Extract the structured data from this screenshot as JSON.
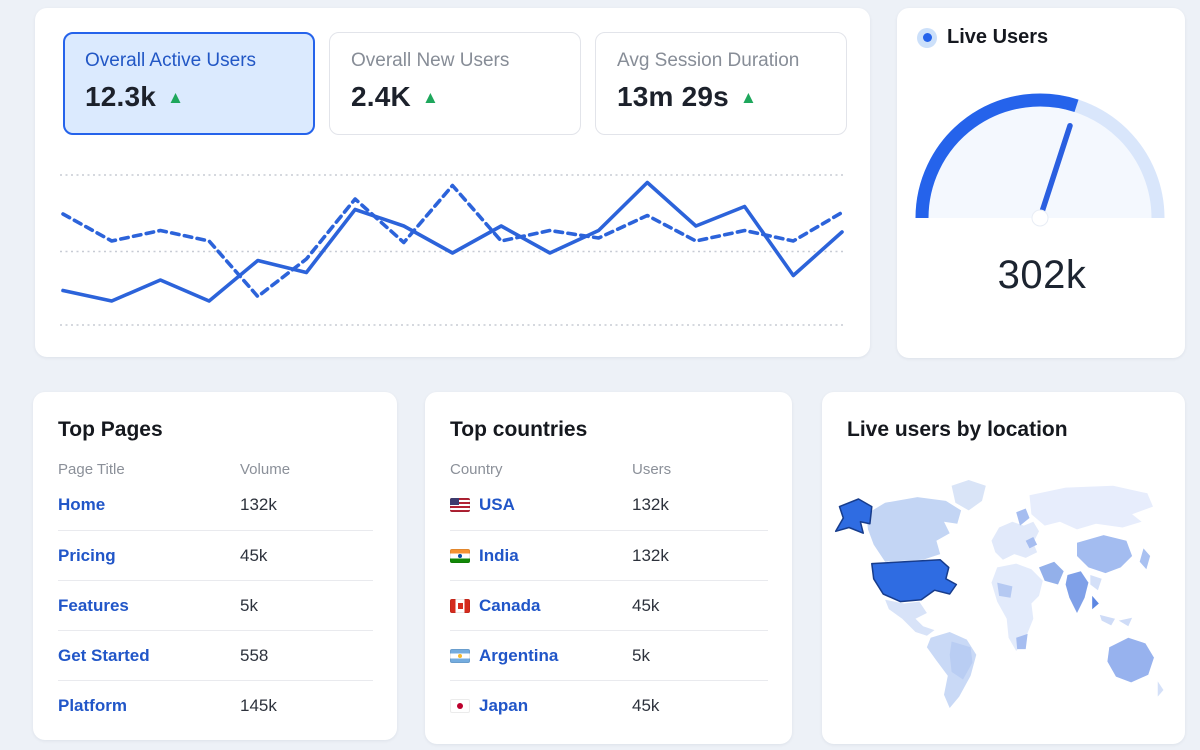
{
  "page": {
    "background": "#edf1f7",
    "accent": "#2563eb"
  },
  "stats": {
    "trend_glyph": "▲",
    "trend_color": "#1ea75c",
    "cards": [
      {
        "label": "Overall Active Users",
        "value": "12.3k",
        "trend": "up",
        "selected": true
      },
      {
        "label": "Overall New Users",
        "value": "2.4K",
        "trend": "up",
        "selected": false
      },
      {
        "label": "Avg Session Duration",
        "value": "13m 29s",
        "trend": "up",
        "selected": false
      }
    ]
  },
  "chart_data": {
    "type": "line",
    "x_count": 17,
    "ylim": [
      0,
      100
    ],
    "gridlines": [
      0,
      49,
      100
    ],
    "grid_color": "#c7cbd4",
    "axes": "hidden",
    "legend_position": "none",
    "series": [
      {
        "name": "active-users-current",
        "style": "solid",
        "color": "#2c63da",
        "values": [
          23,
          16,
          30,
          16,
          43,
          35,
          77,
          66,
          48,
          66,
          48,
          63,
          95,
          66,
          79,
          33,
          62
        ]
      },
      {
        "name": "active-users-previous",
        "style": "dashed",
        "color": "#2c63da",
        "values": [
          74,
          56,
          63,
          56,
          19,
          44,
          84,
          55,
          93,
          56,
          63,
          58,
          73,
          56,
          63,
          56,
          75
        ]
      }
    ]
  },
  "gauge": {
    "legend_label": "Live Users",
    "value": "302k",
    "percent": 60,
    "arc_color": "#2563eb",
    "track_color": "#d9e6fb",
    "needle_color": "#2a5fe0"
  },
  "top_pages": {
    "title": "Top Pages",
    "columns": [
      "Page Title",
      "Volume"
    ],
    "rows": [
      {
        "label": "Home",
        "value": "132k"
      },
      {
        "label": "Pricing",
        "value": "45k"
      },
      {
        "label": "Features",
        "value": "5k"
      },
      {
        "label": "Get Started",
        "value": "558"
      },
      {
        "label": "Platform",
        "value": "145k"
      }
    ]
  },
  "top_countries": {
    "title": "Top countries",
    "columns": [
      "Country",
      "Users"
    ],
    "rows": [
      {
        "label": "USA",
        "flag": "us",
        "value": "132k"
      },
      {
        "label": "India",
        "flag": "in",
        "value": "132k"
      },
      {
        "label": "Canada",
        "flag": "ca",
        "value": "45k"
      },
      {
        "label": "Argentina",
        "flag": "ar",
        "value": "5k"
      },
      {
        "label": "Japan",
        "flag": "jp",
        "value": "45k"
      }
    ]
  },
  "map": {
    "title": "Live users by location",
    "region_colors": {
      "greenland": "#d9e4f7",
      "canada": "#c3d5f4",
      "alaska": "#2f6ce2",
      "usa": "#2f6ce2",
      "usa_border": "#173c8c",
      "mexico": "#d8e3f8",
      "south_america": "#c9d9f6",
      "brazil": "#b9cdf3",
      "europe": "#e1e9fa",
      "europe_spot": "#a6bdf0",
      "africa": "#e3ebfb",
      "africa_spot_west": "#b5c9f2",
      "africa_spot_south": "#a6bdf0",
      "russia": "#e7edfc",
      "middle_east": "#93b0ea",
      "india": "#7fa0e8",
      "china": "#a3bcf0",
      "japan": "#a9c1f1",
      "se_asia": "#d4e0f8",
      "malaysia": "#5d87e2",
      "indonesia": "#cfdcf7",
      "australia": "#97b2ee",
      "new_zealand": "#d4e0f8"
    }
  }
}
